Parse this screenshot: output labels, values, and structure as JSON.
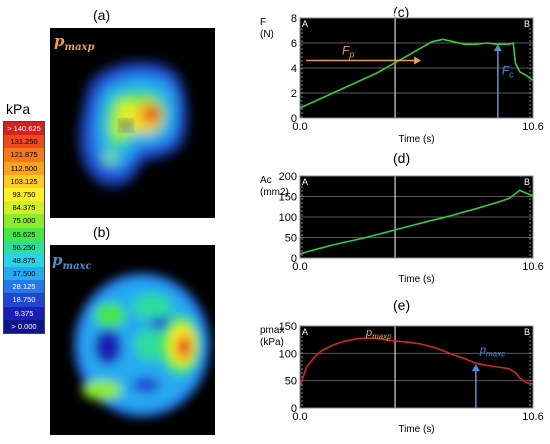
{
  "panel_labels": {
    "a": "(a)",
    "b": "(b)",
    "c": "(c)",
    "d": "(d)",
    "e": "(e)"
  },
  "map_a": {
    "title_main": "p",
    "title_sub": "maxp",
    "title_color": "#e8a050"
  },
  "map_b": {
    "title_main": "p",
    "title_sub": "maxc",
    "title_color": "#4a8fd0"
  },
  "colorbar": {
    "unit": "kPa",
    "ticks": [
      {
        "label": "> 140.625",
        "color": "#d42020"
      },
      {
        "label": "131.250",
        "color": "#ee4a1e"
      },
      {
        "label": "121.875",
        "color": "#f57a1c"
      },
      {
        "label": "112.500",
        "color": "#fba21e"
      },
      {
        "label": "103.125",
        "color": "#ffcb28"
      },
      {
        "label": "93.750",
        "color": "#fff028"
      },
      {
        "label": "84.375",
        "color": "#d2f028"
      },
      {
        "label": "75.000",
        "color": "#8cec2c"
      },
      {
        "label": "65.625",
        "color": "#46e646"
      },
      {
        "label": "56.250",
        "color": "#2edca0"
      },
      {
        "label": "48.875",
        "color": "#2ad2e6"
      },
      {
        "label": "37.500",
        "color": "#28aaf0"
      },
      {
        "label": "28.125",
        "color": "#2678ea"
      },
      {
        "label": "18.750",
        "color": "#2046d2"
      },
      {
        "label": "9.375",
        "color": "#1a1eb4"
      },
      {
        "label": "> 0.000",
        "color": "#10148a"
      }
    ]
  },
  "chart_data": [
    {
      "type": "line",
      "panel": "(c)",
      "ylabel_line1": "F",
      "ylabel_line2": "(N)",
      "xlabel": "Time (s)",
      "xlim": [
        0,
        10.6
      ],
      "ylim": [
        0,
        8
      ],
      "y_ticks": [
        0,
        2,
        4,
        6,
        8
      ],
      "x_tick_labels": [
        "0.0",
        "10.6"
      ],
      "cursor_labels": [
        "A",
        "B"
      ],
      "grid": true,
      "series_color": "#3cc83c",
      "x": [
        0,
        0.5,
        1,
        1.5,
        2,
        2.5,
        3,
        3.5,
        4,
        4.5,
        5,
        5.5,
        6,
        6.5,
        7,
        7.5,
        8,
        8.5,
        9,
        9.5,
        9.7,
        9.8,
        10,
        10.3,
        10.6
      ],
      "y": [
        0.8,
        1.2,
        1.6,
        2.0,
        2.4,
        2.8,
        3.2,
        3.6,
        4.1,
        4.6,
        5.1,
        5.6,
        6.1,
        6.3,
        6.1,
        5.9,
        5.9,
        6.0,
        5.9,
        5.9,
        6.0,
        4.4,
        3.7,
        3.4,
        3.0
      ],
      "annotations": [
        {
          "main": "F",
          "sub": "p",
          "color": "#e8a050"
        },
        {
          "main": "F",
          "sub": "c",
          "color": "#4a8fd0"
        }
      ]
    },
    {
      "type": "line",
      "panel": "(d)",
      "ylabel_line1": "Ac",
      "ylabel_line2": "(mm2)",
      "xlabel": "Time (s)",
      "xlim": [
        0,
        10.6
      ],
      "ylim": [
        0,
        200
      ],
      "y_ticks": [
        0,
        50,
        100,
        150,
        200
      ],
      "x_tick_labels": [
        "0.0",
        "10.6"
      ],
      "cursor_labels": [
        "A",
        "B"
      ],
      "grid": true,
      "series_color": "#3cc83c",
      "x": [
        0,
        0.5,
        1,
        1.5,
        2,
        2.5,
        3,
        3.5,
        4,
        4.5,
        5,
        5.5,
        6,
        6.5,
        7,
        7.5,
        8,
        8.5,
        9,
        9.5,
        10,
        10.3,
        10.6
      ],
      "y": [
        10,
        18,
        25,
        32,
        38,
        44,
        50,
        57,
        64,
        71,
        78,
        85,
        92,
        98,
        105,
        113,
        120,
        128,
        136,
        145,
        165,
        158,
        152
      ],
      "annotations": []
    },
    {
      "type": "line",
      "panel": "(e)",
      "ylabel_line1": "pmax",
      "ylabel_line2": "(kPa)",
      "xlabel": "Time (s)",
      "xlim": [
        0,
        10.6
      ],
      "ylim": [
        0,
        150
      ],
      "y_ticks": [
        0,
        50,
        100,
        150
      ],
      "x_tick_labels": [
        "0.0",
        "10.6"
      ],
      "cursor_labels": [
        "A",
        "B"
      ],
      "grid": true,
      "series_color": "#cc2a2a",
      "x": [
        0,
        0.3,
        0.7,
        1,
        1.5,
        2,
        2.5,
        3,
        3.5,
        4,
        4.5,
        5,
        5.5,
        6,
        6.5,
        7,
        7.5,
        8,
        8.5,
        9,
        9.5,
        9.8,
        10,
        10.3,
        10.6
      ],
      "y": [
        40,
        75,
        95,
        105,
        115,
        122,
        126,
        128,
        127,
        124,
        122,
        120,
        117,
        112,
        105,
        97,
        90,
        82,
        78,
        75,
        72,
        65,
        55,
        46,
        44
      ],
      "annotations": [
        {
          "main": "p",
          "sub": "maxp",
          "color": "#e8a050"
        },
        {
          "main": "p",
          "sub": "maxc",
          "color": "#4a8fd0"
        }
      ]
    }
  ]
}
